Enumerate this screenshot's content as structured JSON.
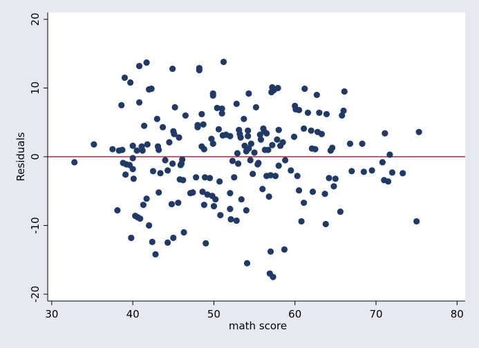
{
  "chart_data": {
    "type": "scatter",
    "title": "",
    "xlabel": "math score",
    "ylabel": "Residuals",
    "xlim": [
      29.5,
      81
    ],
    "ylim": [
      -21,
      21
    ],
    "xticks": [
      30,
      40,
      50,
      60,
      70,
      80
    ],
    "yticks": [
      -20,
      -10,
      0,
      10,
      20
    ],
    "xtick_labels": [
      "30",
      "40",
      "50",
      "60",
      "70",
      "80"
    ],
    "ytick_labels": [
      "-20",
      "-10",
      "0",
      "10",
      "20"
    ],
    "grid": false,
    "legend": "none",
    "reference_line": {
      "y": 0,
      "color": "#b2283c"
    },
    "colors": {
      "outer_background": "#e4e9f2",
      "plot_background": "#ffffff",
      "marker": "#1f3a66",
      "reference_line": "#b2283c",
      "axis": "#000000"
    },
    "points": [
      [
        32.8,
        -0.8
      ],
      [
        35.2,
        1.8
      ],
      [
        37.5,
        1.1
      ],
      [
        38.1,
        -7.8
      ],
      [
        38.3,
        0.9
      ],
      [
        38.6,
        7.5
      ],
      [
        38.7,
        1.0
      ],
      [
        38.8,
        -0.9
      ],
      [
        39.0,
        11.5
      ],
      [
        39.1,
        -2.6
      ],
      [
        39.2,
        -1.1
      ],
      [
        39.6,
        -1.2
      ],
      [
        39.7,
        10.8
      ],
      [
        39.8,
        -11.8
      ],
      [
        40.0,
        1.6
      ],
      [
        40.0,
        -0.2
      ],
      [
        40.0,
        -1.8
      ],
      [
        40.1,
        -3.2
      ],
      [
        40.3,
        -8.6
      ],
      [
        40.5,
        0.9
      ],
      [
        40.6,
        -8.8
      ],
      [
        40.8,
        13.2
      ],
      [
        40.8,
        7.9
      ],
      [
        40.9,
        -9.0
      ],
      [
        41.1,
        1.5
      ],
      [
        41.2,
        0.9
      ],
      [
        41.3,
        -7.0
      ],
      [
        41.4,
        4.5
      ],
      [
        41.7,
        13.7
      ],
      [
        41.7,
        -6.1
      ],
      [
        41.8,
        1.8
      ],
      [
        42.0,
        9.8
      ],
      [
        42.3,
        9.9
      ],
      [
        42.0,
        -10.0
      ],
      [
        42.4,
        -12.4
      ],
      [
        42.5,
        -2.1
      ],
      [
        42.8,
        -14.2
      ],
      [
        43.0,
        5.5
      ],
      [
        43.1,
        1.5
      ],
      [
        43.2,
        1.0
      ],
      [
        43.2,
        -5.2
      ],
      [
        43.4,
        -2.4
      ],
      [
        43.7,
        4.3
      ],
      [
        44.0,
        -0.5
      ],
      [
        44.3,
        -12.5
      ],
      [
        44.3,
        -2.0
      ],
      [
        44.5,
        2.1
      ],
      [
        44.8,
        -6.9
      ],
      [
        44.9,
        12.8
      ],
      [
        44.9,
        -1.0
      ],
      [
        45.0,
        -11.8
      ],
      [
        45.0,
        3.7
      ],
      [
        45.1,
        3.3
      ],
      [
        45.2,
        7.2
      ],
      [
        45.6,
        -6.7
      ],
      [
        45.7,
        2.8
      ],
      [
        45.8,
        -3.3
      ],
      [
        45.9,
        -1.2
      ],
      [
        46.0,
        -1.0
      ],
      [
        46.1,
        -0.4
      ],
      [
        46.2,
        -3.4
      ],
      [
        46.3,
        -11.0
      ],
      [
        46.5,
        6.0
      ],
      [
        47.1,
        -5.3
      ],
      [
        47.4,
        -5.2
      ],
      [
        47.8,
        -3.0
      ],
      [
        48.0,
        4.3
      ],
      [
        48.0,
        4.6
      ],
      [
        48.2,
        12.6
      ],
      [
        48.2,
        12.9
      ],
      [
        48.5,
        6.2
      ],
      [
        48.5,
        1.5
      ],
      [
        48.6,
        -5.1
      ],
      [
        48.7,
        4.7
      ],
      [
        48.8,
        1.1
      ],
      [
        48.8,
        -7.0
      ],
      [
        48.9,
        -3.0
      ],
      [
        49.0,
        -12.6
      ],
      [
        49.2,
        -5.5
      ],
      [
        49.5,
        -3.1
      ],
      [
        49.7,
        2.6
      ],
      [
        49.8,
        -5.7
      ],
      [
        49.9,
        9.2
      ],
      [
        49.9,
        8.9
      ],
      [
        49.9,
        1.9
      ],
      [
        50.0,
        -7.2
      ],
      [
        50.2,
        -6.2
      ],
      [
        50.4,
        7.1
      ],
      [
        50.6,
        4.0
      ],
      [
        50.7,
        -3.6
      ],
      [
        50.8,
        -8.5
      ],
      [
        51.0,
        7.0
      ],
      [
        51.0,
        6.3
      ],
      [
        51.1,
        3.1
      ],
      [
        51.2,
        13.8
      ],
      [
        51.5,
        3.2
      ],
      [
        52.0,
        -5.3
      ],
      [
        52.0,
        3.0
      ],
      [
        52.0,
        -7.6
      ],
      [
        52.1,
        -9.1
      ],
      [
        52.3,
        -0.6
      ],
      [
        52.5,
        -3.0
      ],
      [
        52.8,
        7.7
      ],
      [
        52.8,
        -9.3
      ],
      [
        52.9,
        0.5
      ],
      [
        53.0,
        -1.0
      ],
      [
        53.1,
        3.9
      ],
      [
        53.2,
        3.3
      ],
      [
        53.3,
        2.8
      ],
      [
        53.4,
        -6.2
      ],
      [
        53.7,
        5.5
      ],
      [
        53.8,
        1.6
      ],
      [
        54.0,
        0.8
      ],
      [
        54.0,
        -7.8
      ],
      [
        54.1,
        -15.5
      ],
      [
        54.2,
        3.0
      ],
      [
        54.2,
        3.8
      ],
      [
        54.3,
        1.2
      ],
      [
        54.3,
        9.2
      ],
      [
        54.5,
        -0.5
      ],
      [
        54.6,
        1.9
      ],
      [
        54.8,
        -2.5
      ],
      [
        55.0,
        0.6
      ],
      [
        55.2,
        7.2
      ],
      [
        55.4,
        -1.1
      ],
      [
        55.5,
        -0.9
      ],
      [
        55.7,
        3.2
      ],
      [
        55.8,
        2.5
      ],
      [
        56.0,
        -4.7
      ],
      [
        56.1,
        4.1
      ],
      [
        56.2,
        3.7
      ],
      [
        56.3,
        1.0
      ],
      [
        56.5,
        3.4
      ],
      [
        56.5,
        -2.8
      ],
      [
        56.7,
        1.0
      ],
      [
        56.8,
        -5.8
      ],
      [
        56.9,
        -17.0
      ],
      [
        57.0,
        -13.8
      ],
      [
        57.0,
        -2.7
      ],
      [
        57.1,
        9.4
      ],
      [
        57.2,
        10.1
      ],
      [
        57.2,
        1.7
      ],
      [
        57.3,
        -17.5
      ],
      [
        57.4,
        9.7
      ],
      [
        57.6,
        -2.8
      ],
      [
        57.8,
        2.5
      ],
      [
        57.9,
        10.0
      ],
      [
        58.0,
        3.9
      ],
      [
        58.0,
        -1.3
      ],
      [
        58.2,
        1.6
      ],
      [
        58.5,
        2.1
      ],
      [
        58.7,
        -13.5
      ],
      [
        58.8,
        -0.5
      ],
      [
        59.5,
        -2.0
      ],
      [
        59.9,
        2.9
      ],
      [
        60.0,
        7.4
      ],
      [
        60.1,
        6.9
      ],
      [
        60.3,
        -2.8
      ],
      [
        60.5,
        -4.9
      ],
      [
        60.5,
        6.8
      ],
      [
        60.8,
        -9.4
      ],
      [
        61.1,
        4.1
      ],
      [
        61.1,
        -6.7
      ],
      [
        61.2,
        9.9
      ],
      [
        61.6,
        6.4
      ],
      [
        62.0,
        3.8
      ],
      [
        62.1,
        1.2
      ],
      [
        62.2,
        -5.1
      ],
      [
        62.5,
        1.1
      ],
      [
        62.7,
        9.0
      ],
      [
        62.8,
        3.6
      ],
      [
        63.0,
        6.4
      ],
      [
        63.3,
        3.3
      ],
      [
        63.7,
        -5.4
      ],
      [
        63.8,
        -9.8
      ],
      [
        63.9,
        6.2
      ],
      [
        64.2,
        -3.1
      ],
      [
        64.4,
        0.9
      ],
      [
        64.6,
        1.3
      ],
      [
        64.8,
        -4.3
      ],
      [
        65.0,
        -3.2
      ],
      [
        65.6,
        -8.0
      ],
      [
        65.8,
        6.0
      ],
      [
        66.0,
        6.7
      ],
      [
        66.1,
        9.5
      ],
      [
        66.8,
        1.9
      ],
      [
        67.0,
        -2.1
      ],
      [
        68.3,
        1.9
      ],
      [
        68.5,
        -2.2
      ],
      [
        69.5,
        -2.0
      ],
      [
        70.8,
        -0.8
      ],
      [
        71.0,
        -3.4
      ],
      [
        71.1,
        3.4
      ],
      [
        71.5,
        -3.6
      ],
      [
        71.7,
        0.3
      ],
      [
        72.0,
        -2.3
      ],
      [
        73.3,
        -2.4
      ],
      [
        75.0,
        -9.4
      ],
      [
        75.3,
        3.6
      ]
    ]
  }
}
